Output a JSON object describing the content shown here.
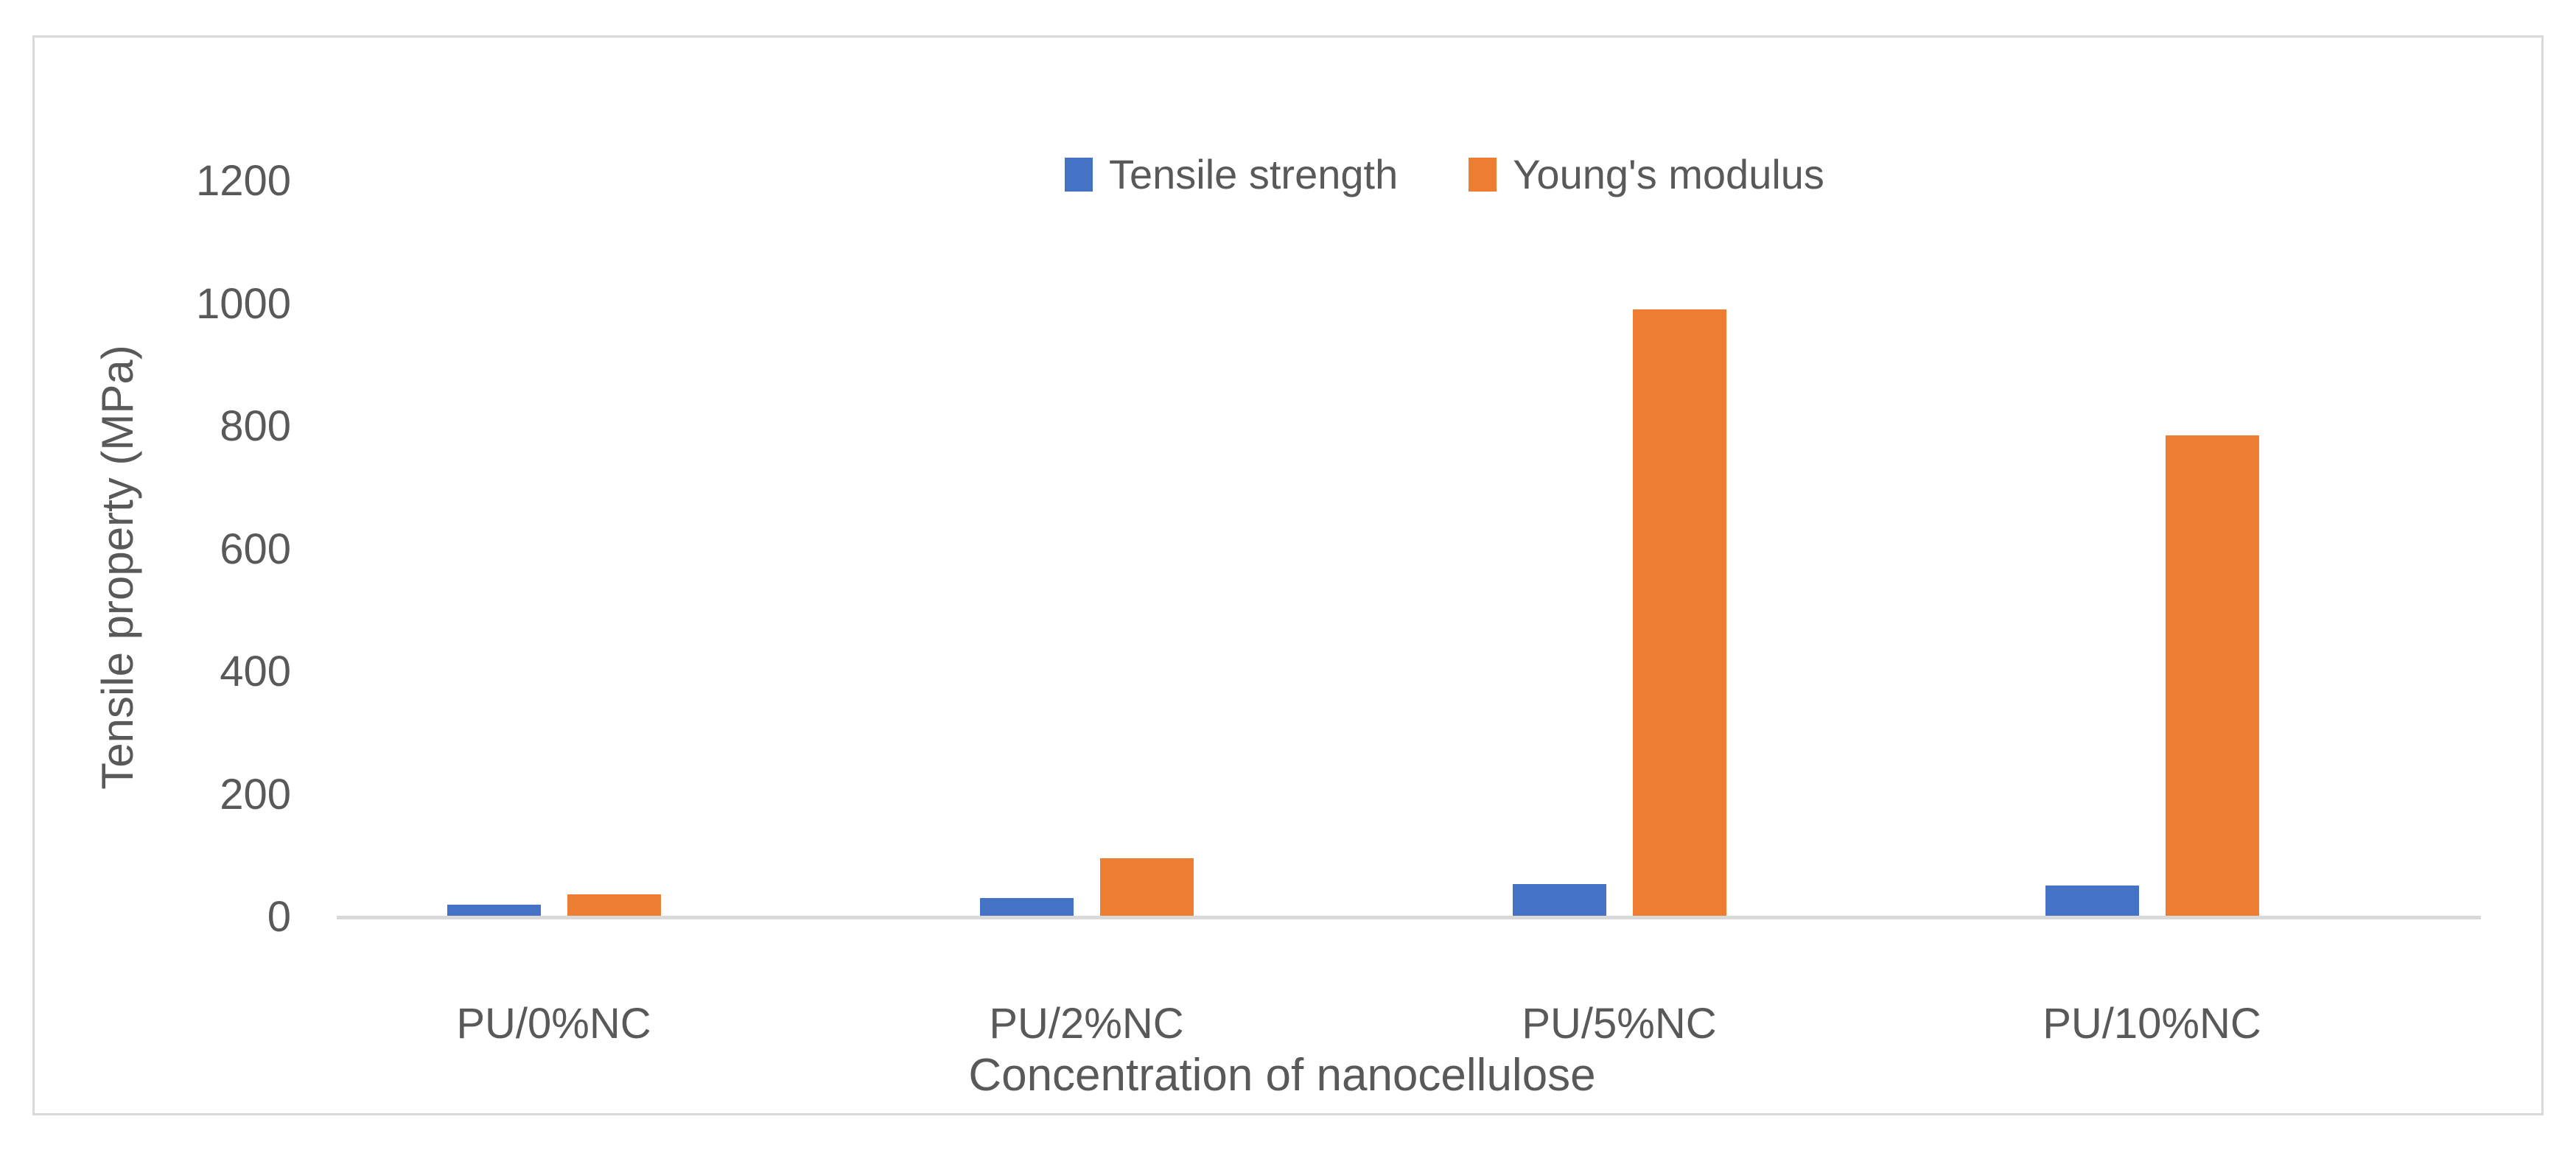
{
  "figure": {
    "frame_color": "#D9D9D9",
    "background": "#ffffff",
    "text_color": "#595959"
  },
  "chart_data": {
    "type": "bar",
    "title": "",
    "categories": [
      "PU/0%NC",
      "PU/2%NC",
      "PU/5%NC",
      "PU/10%NC"
    ],
    "series": [
      {
        "name": "Tensile strength",
        "color": "#4472C4",
        "values": [
          18,
          29,
          52,
          49
        ]
      },
      {
        "name": "Young's modulus",
        "color": "#ED7D31",
        "values": [
          35,
          94,
          988,
          783
        ]
      }
    ],
    "xlabel": "Concentration of nanocellulose",
    "ylabel": "Tensile property (MPa)",
    "ylim": [
      0,
      1200
    ],
    "yticks": [
      0,
      200,
      400,
      600,
      800,
      1000,
      1200
    ],
    "grid": false,
    "legend_position": "top-center",
    "axis_line_color": "#D9D9D9"
  }
}
